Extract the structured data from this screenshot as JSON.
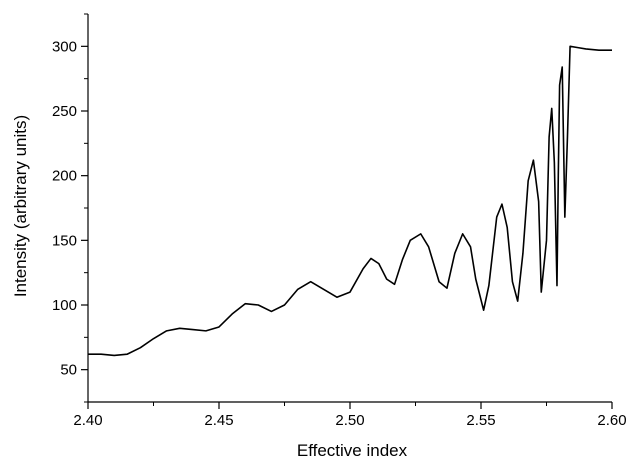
{
  "chart_data": {
    "type": "line",
    "title": "",
    "xlabel": "Effective index",
    "ylabel": "Intensity (arbitrary units)",
    "xlim": [
      2.4,
      2.6
    ],
    "ylim": [
      25,
      325
    ],
    "xticks": [
      2.4,
      2.45,
      2.5,
      2.55,
      2.6
    ],
    "xtick_labels": [
      "2.40",
      "2.45",
      "2.50",
      "2.55",
      "2.60"
    ],
    "yticks": [
      50,
      100,
      150,
      200,
      250,
      300
    ],
    "ytick_labels": [
      "50",
      "100",
      "150",
      "200",
      "250",
      "300"
    ],
    "grid": false,
    "legend": "none",
    "line_color": "#000000",
    "series": [
      {
        "x": [
          2.4,
          2.405,
          2.41,
          2.415,
          2.42,
          2.425,
          2.43,
          2.435,
          2.44,
          2.445,
          2.45,
          2.455,
          2.46,
          2.465,
          2.47,
          2.475,
          2.48,
          2.485,
          2.49,
          2.495,
          2.5,
          2.505,
          2.508,
          2.511,
          2.514,
          2.517,
          2.52,
          2.523,
          2.527,
          2.53,
          2.534,
          2.537,
          2.54,
          2.543,
          2.546,
          2.548,
          2.551,
          2.553,
          2.556,
          2.558,
          2.56,
          2.562,
          2.564,
          2.566,
          2.568,
          2.57,
          2.572,
          2.573,
          2.575,
          2.576,
          2.577,
          2.578,
          2.579,
          2.5795,
          2.58,
          2.581,
          2.582,
          2.583,
          2.584,
          2.587,
          2.59,
          2.595,
          2.6
        ],
        "y": [
          62,
          62,
          61,
          62,
          67,
          74,
          80,
          82,
          81,
          80,
          83,
          93,
          101,
          100,
          95,
          100,
          112,
          118,
          112,
          106,
          110,
          128,
          136,
          132,
          120,
          116,
          135,
          150,
          155,
          145,
          118,
          113,
          140,
          155,
          145,
          120,
          96,
          115,
          168,
          178,
          160,
          118,
          103,
          140,
          196,
          212,
          180,
          110,
          150,
          230,
          252,
          210,
          115,
          200,
          270,
          284,
          168,
          230,
          300,
          299,
          298,
          297,
          297
        ]
      }
    ]
  }
}
